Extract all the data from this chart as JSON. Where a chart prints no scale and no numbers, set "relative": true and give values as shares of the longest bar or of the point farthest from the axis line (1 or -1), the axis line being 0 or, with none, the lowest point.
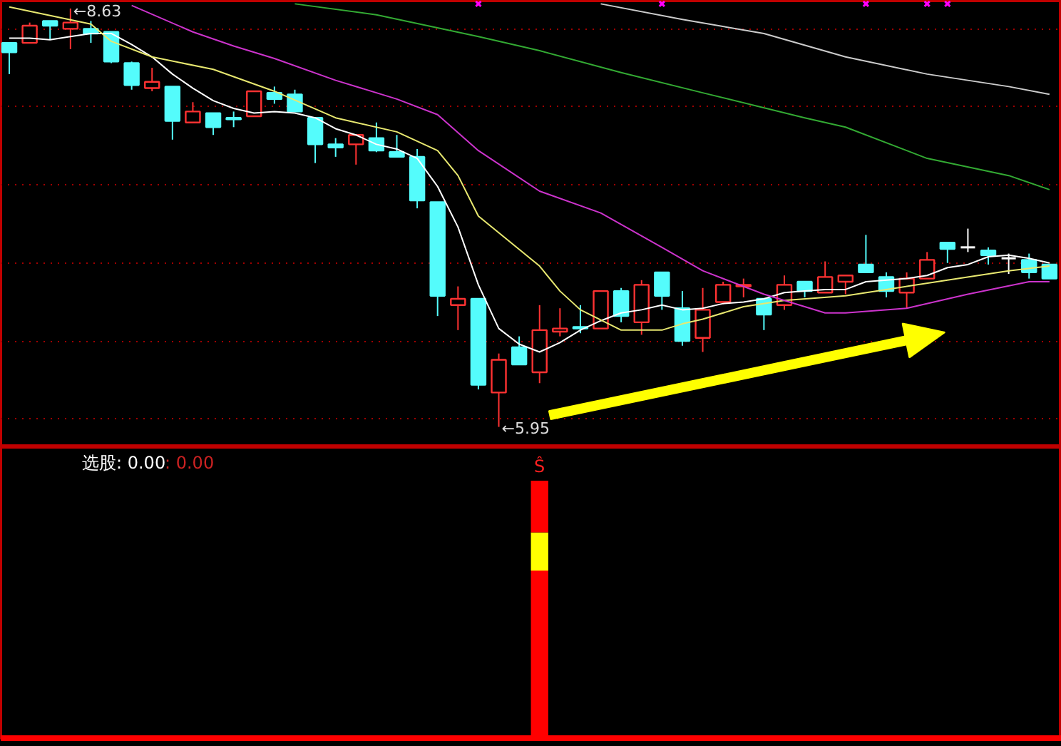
{
  "chart_data": [
    {
      "type": "candlestick",
      "categories": [
        null,
        null,
        null,
        null,
        null,
        null,
        null,
        null,
        null,
        null,
        null,
        null,
        null,
        null,
        null,
        null,
        null,
        null,
        null,
        null,
        null,
        null,
        null,
        null,
        null,
        null,
        null,
        null,
        null,
        null,
        null,
        null,
        null,
        null,
        null,
        null,
        null,
        null,
        null,
        null,
        null,
        null,
        null,
        null,
        null,
        null,
        null,
        null,
        null,
        null,
        null,
        null
      ],
      "ohlc": [
        [
          8.41,
          8.41,
          8.21,
          8.35
        ],
        [
          8.41,
          8.54,
          8.41,
          8.52
        ],
        [
          8.55,
          8.55,
          8.43,
          8.52
        ],
        [
          8.5,
          8.63,
          8.37,
          8.54
        ],
        [
          8.5,
          8.55,
          8.41,
          8.47
        ],
        [
          8.48,
          8.48,
          8.28,
          8.29
        ],
        [
          8.28,
          8.29,
          8.11,
          8.14
        ],
        [
          8.12,
          8.25,
          8.1,
          8.16
        ],
        [
          8.13,
          8.13,
          7.79,
          7.91
        ],
        [
          7.9,
          8.03,
          7.9,
          7.97
        ],
        [
          7.96,
          7.96,
          7.82,
          7.87
        ],
        [
          7.93,
          7.97,
          7.87,
          7.92
        ],
        [
          7.94,
          8.1,
          7.94,
          8.1
        ],
        [
          8.09,
          8.13,
          8.02,
          8.05
        ],
        [
          8.08,
          8.11,
          7.97,
          7.97
        ],
        [
          7.93,
          7.93,
          7.64,
          7.76
        ],
        [
          7.76,
          7.8,
          7.68,
          7.74
        ],
        [
          7.76,
          7.82,
          7.63,
          7.82
        ],
        [
          7.8,
          7.9,
          7.71,
          7.72
        ],
        [
          7.71,
          7.82,
          7.68,
          7.68
        ],
        [
          7.68,
          7.73,
          7.35,
          7.4
        ],
        [
          7.39,
          7.39,
          6.66,
          6.79
        ],
        [
          6.73,
          6.85,
          6.57,
          6.77
        ],
        [
          6.77,
          6.77,
          6.19,
          6.22
        ],
        [
          6.17,
          6.42,
          5.95,
          6.38
        ],
        [
          6.46,
          6.53,
          6.35,
          6.35
        ],
        [
          6.3,
          6.73,
          6.23,
          6.57
        ],
        [
          6.56,
          6.71,
          6.53,
          6.58
        ],
        [
          6.59,
          6.73,
          6.55,
          6.58
        ],
        [
          6.58,
          6.82,
          6.58,
          6.82
        ],
        [
          6.82,
          6.84,
          6.62,
          6.66
        ],
        [
          6.62,
          6.89,
          6.54,
          6.86
        ],
        [
          6.94,
          6.94,
          6.7,
          6.79
        ],
        [
          6.71,
          6.82,
          6.47,
          6.5
        ],
        [
          6.52,
          6.84,
          6.43,
          6.7
        ],
        [
          6.75,
          6.88,
          6.75,
          6.86
        ],
        [
          6.85,
          6.9,
          6.78,
          6.86
        ],
        [
          6.77,
          6.77,
          6.57,
          6.67
        ],
        [
          6.73,
          6.92,
          6.7,
          6.86
        ],
        [
          6.88,
          6.88,
          6.78,
          6.82
        ],
        [
          6.81,
          7.01,
          6.81,
          6.91
        ],
        [
          6.88,
          6.92,
          6.8,
          6.92
        ],
        [
          6.99,
          7.18,
          6.94,
          6.94
        ],
        [
          6.91,
          6.94,
          6.78,
          6.82
        ],
        [
          6.81,
          6.94,
          6.71,
          6.9
        ],
        [
          6.9,
          7.07,
          6.9,
          7.02
        ],
        [
          7.13,
          7.13,
          7.0,
          7.09
        ],
        [
          7.1,
          7.22,
          7.07,
          7.1
        ],
        [
          7.08,
          7.1,
          6.99,
          7.05
        ],
        [
          7.03,
          7.06,
          6.93,
          7.03
        ],
        [
          7.02,
          7.06,
          6.9,
          6.94
        ],
        [
          6.99,
          6.99,
          6.9,
          6.9
        ]
      ],
      "colors": [
        "#54fcfc",
        "#ff3232",
        "#54fcfc",
        "#ff3232",
        "#54fcfc",
        "#54fcfc",
        "#54fcfc",
        "#ff3232",
        "#54fcfc",
        "#ff3232",
        "#54fcfc",
        "#54fcfc",
        "#ff3232",
        "#54fcfc",
        "#54fcfc",
        "#54fcfc",
        "#54fcfc",
        "#ff3232",
        "#54fcfc",
        "#54fcfc",
        "#54fcfc",
        "#54fcfc",
        "#ff3232",
        "#54fcfc",
        "#ff3232",
        "#54fcfc",
        "#ff3232",
        "#ff3232",
        "#54fcfc",
        "#ff3232",
        "#54fcfc",
        "#ff3232",
        "#54fcfc",
        "#54fcfc",
        "#ff3232",
        "#ff3232",
        "#ff3232",
        "#54fcfc",
        "#ff3232",
        "#54fcfc",
        "#ff3232",
        "#ff3232",
        "#54fcfc",
        "#54fcfc",
        "#ff3232",
        "#ff3232",
        "#54fcfc",
        "#ffffff",
        "#54fcfc",
        "#ffffff",
        "#54fcfc",
        "#54fcfc"
      ],
      "series": [
        {
          "type": "line",
          "color": "#ffffff",
          "values": [
            8.44,
            8.44,
            8.43,
            8.45,
            8.47,
            8.47,
            8.4,
            8.32,
            8.21,
            8.12,
            8.04,
            7.99,
            7.96,
            7.97,
            7.96,
            7.93,
            7.86,
            7.82,
            7.76,
            7.73,
            7.67,
            7.49,
            7.23,
            6.86,
            6.58,
            6.48,
            6.43,
            6.49,
            6.57,
            6.63,
            6.68,
            6.7,
            6.73,
            6.7,
            6.71,
            6.74,
            6.75,
            6.77,
            6.81,
            6.82,
            6.83,
            6.83,
            6.88,
            6.89,
            6.9,
            6.92,
            6.97,
            6.99,
            7.04,
            7.05,
            7.03,
            7.0
          ]
        },
        {
          "type": "line",
          "color": "#e8e870",
          "values": [
            8.64,
            null,
            null,
            null,
            8.53,
            8.42,
            null,
            8.32,
            null,
            null,
            8.24,
            null,
            null,
            8.1,
            null,
            null,
            7.93,
            null,
            null,
            7.84,
            null,
            7.72,
            7.56,
            7.3,
            null,
            null,
            6.98,
            6.82,
            6.7,
            null,
            6.57,
            null,
            6.57,
            6.61,
            6.64,
            null,
            6.72,
            null,
            6.76,
            null,
            null,
            6.79,
            null,
            6.83,
            null,
            null,
            6.89,
            null,
            null,
            6.95,
            null,
            6.98
          ]
        },
        {
          "type": "line",
          "color": "#cc33cc",
          "values": [
            null,
            null,
            null,
            null,
            null,
            null,
            8.65,
            null,
            null,
            8.48,
            null,
            8.39,
            null,
            8.31,
            null,
            null,
            8.17,
            null,
            null,
            8.05,
            null,
            7.95,
            null,
            7.72,
            null,
            null,
            7.46,
            null,
            null,
            7.32,
            null,
            null,
            7.1,
            null,
            6.95,
            null,
            null,
            6.8,
            null,
            null,
            6.68,
            6.68,
            null,
            null,
            6.71,
            null,
            null,
            6.8,
            null,
            null,
            6.88,
            6.88
          ]
        },
        {
          "type": "line",
          "color": "#33aa33",
          "values": [
            null,
            null,
            null,
            null,
            null,
            null,
            null,
            null,
            null,
            null,
            null,
            null,
            null,
            null,
            8.66,
            null,
            null,
            null,
            8.59,
            null,
            null,
            null,
            null,
            8.45,
            null,
            null,
            8.36,
            null,
            null,
            null,
            8.22,
            null,
            null,
            null,
            8.09,
            null,
            null,
            null,
            null,
            7.93,
            null,
            7.87,
            null,
            null,
            null,
            7.67,
            null,
            null,
            null,
            7.56,
            null,
            7.47
          ]
        },
        {
          "type": "line",
          "color": "#cccccc",
          "values": [
            null,
            null,
            null,
            null,
            null,
            null,
            null,
            null,
            null,
            null,
            null,
            null,
            null,
            null,
            null,
            null,
            null,
            null,
            null,
            null,
            null,
            null,
            null,
            null,
            null,
            null,
            null,
            null,
            null,
            8.66,
            null,
            null,
            null,
            8.56,
            null,
            null,
            null,
            8.47,
            null,
            null,
            null,
            8.32,
            null,
            null,
            null,
            8.21,
            null,
            null,
            null,
            8.13,
            null,
            8.08
          ]
        },
        {
          "type": "scatter",
          "marker": "cross",
          "color": "#ff00ff",
          "values": [
            null,
            null,
            null,
            null,
            null,
            null,
            null,
            null,
            null,
            null,
            null,
            null,
            null,
            null,
            null,
            null,
            null,
            null,
            null,
            null,
            null,
            null,
            null,
            8.66,
            null,
            null,
            null,
            null,
            null,
            null,
            null,
            null,
            8.66,
            null,
            null,
            null,
            null,
            null,
            null,
            null,
            null,
            null,
            8.66,
            null,
            null,
            8.66,
            8.66,
            null,
            null,
            null,
            null,
            null
          ]
        }
      ],
      "annotations": [
        "←8.63",
        "←5.95"
      ],
      "ylim": [
        5.82,
        8.68
      ],
      "yticks": [
        {
          "value": 8.5,
          "label": null
        },
        {
          "value": 8.0,
          "label": null
        },
        {
          "value": 7.5,
          "label": null
        },
        {
          "value": 7.0,
          "label": null
        },
        {
          "value": 6.5,
          "label": null
        },
        {
          "value": 6.0,
          "label": null
        }
      ],
      "grid": "y",
      "tick_labels": false
    },
    {
      "type": "bar",
      "relative": true,
      "stacked": true,
      "categories": [
        null,
        null,
        null,
        null,
        null,
        null,
        null,
        null,
        null,
        null,
        null,
        null,
        null,
        null,
        null,
        null,
        null,
        null,
        null,
        null,
        null,
        null,
        null,
        null,
        null,
        null,
        null,
        null,
        null,
        null,
        null,
        null,
        null,
        null,
        null,
        null,
        null,
        null,
        null,
        null,
        null,
        null,
        null,
        null,
        null,
        null,
        null,
        null,
        null,
        null,
        null,
        null
      ],
      "series": [
        {
          "color": "#ff0000",
          "values": [
            null,
            null,
            null,
            null,
            null,
            null,
            null,
            null,
            null,
            null,
            null,
            null,
            null,
            null,
            null,
            null,
            null,
            null,
            null,
            null,
            null,
            null,
            null,
            null,
            null,
            null,
            0.651,
            null,
            null,
            null,
            null,
            null,
            null,
            null,
            null,
            null,
            null,
            null,
            null,
            null,
            null,
            null,
            null,
            null,
            null,
            null,
            null,
            null,
            null,
            null,
            null,
            null
          ]
        },
        {
          "color": "#ffff00",
          "values": [
            null,
            null,
            null,
            null,
            null,
            null,
            null,
            null,
            null,
            null,
            null,
            null,
            null,
            null,
            null,
            null,
            null,
            null,
            null,
            null,
            null,
            null,
            null,
            null,
            null,
            null,
            0.148,
            null,
            null,
            null,
            null,
            null,
            null,
            null,
            null,
            null,
            null,
            null,
            null,
            null,
            null,
            null,
            null,
            null,
            null,
            null,
            null,
            null,
            null,
            null,
            null,
            null
          ]
        },
        {
          "color": "#ff0000",
          "values": [
            null,
            null,
            null,
            null,
            null,
            null,
            null,
            null,
            null,
            null,
            null,
            null,
            null,
            null,
            null,
            null,
            null,
            null,
            null,
            null,
            null,
            null,
            null,
            null,
            null,
            null,
            0.201,
            null,
            null,
            null,
            null,
            null,
            null,
            null,
            null,
            null,
            null,
            null,
            null,
            null,
            null,
            null,
            null,
            null,
            null,
            null,
            null,
            null,
            null,
            null,
            null,
            null
          ]
        }
      ],
      "annotations": [
        "选股: 0.00",
        ": 0.00",
        "Ŝ"
      ],
      "tick_labels": false
    }
  ]
}
